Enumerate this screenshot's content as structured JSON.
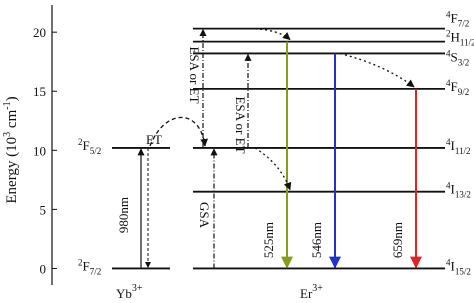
{
  "axis": {
    "label": [
      "Energy (10",
      "3",
      " cm",
      "-1",
      ")"
    ],
    "ylim": [
      -1.4,
      22.3
    ],
    "yticks": [
      0,
      5,
      10,
      15,
      20
    ]
  },
  "yb": {
    "name": [
      "Yb",
      "3+"
    ],
    "levels": [
      {
        "sup": "2",
        "term": "F",
        "sub": "7/2",
        "energy": 0
      },
      {
        "sup": "2",
        "term": "F",
        "sub": "5/2",
        "energy": 10.2
      }
    ]
  },
  "er": {
    "name": [
      "Er",
      "3+"
    ],
    "levels": [
      {
        "sup": "4",
        "term": "I",
        "sub": "15/2",
        "energy": 0
      },
      {
        "sup": "4",
        "term": "I",
        "sub": "13/2",
        "energy": 6.5
      },
      {
        "sup": "4",
        "term": "I",
        "sub": "11/2",
        "energy": 10.2
      },
      {
        "sup": "4",
        "term": "F",
        "sub": "9/2",
        "energy": 15.2
      },
      {
        "sup": "4",
        "term": "S",
        "sub": "3/2",
        "energy": 18.2
      },
      {
        "sup": "2",
        "term": "H",
        "sub": "11/2",
        "energy": 19.2
      },
      {
        "sup": "4",
        "term": "F",
        "sub": "7/2",
        "energy": 20.3
      }
    ]
  },
  "transitions": [
    {
      "label": "980nm"
    },
    {
      "label": "GSA"
    },
    {
      "label": "ESA or ET"
    },
    {
      "label": "ESA or ET"
    },
    {
      "label": "525nm"
    },
    {
      "label": "546nm"
    },
    {
      "label": "659nm"
    },
    {
      "label": "ET"
    }
  ]
}
